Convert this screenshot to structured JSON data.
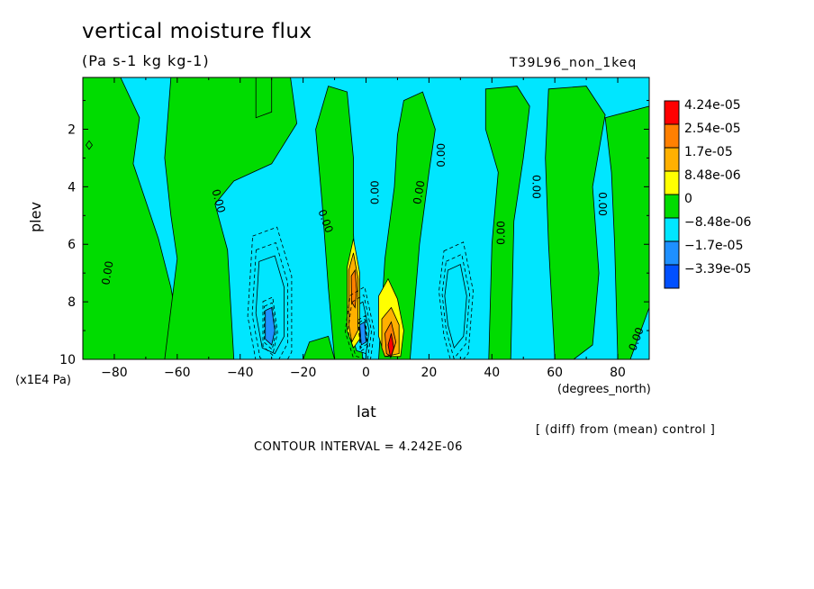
{
  "chart_data": {
    "type": "heatmap",
    "title": "vertical moisture flux",
    "units": "(Pa s-1 kg kg-1)",
    "run_label": "T39L96_non_1keq",
    "xlabel": "lat",
    "x_unit": "(degrees_north)",
    "ylabel": "plev",
    "y_unit": "(x1E4 Pa)",
    "xlim": [
      -90,
      90
    ],
    "ylim": [
      10,
      0.2
    ],
    "x_ticks": [
      -80,
      -60,
      -40,
      -20,
      0,
      20,
      40,
      60,
      80
    ],
    "x_tick_labels": [
      "−80",
      "−60",
      "−40",
      "−20",
      "0",
      "20",
      "40",
      "60",
      "80"
    ],
    "y_ticks": [
      2,
      4,
      6,
      8,
      10
    ],
    "y_tick_labels": [
      "2",
      "4",
      "6",
      "8",
      "10"
    ],
    "contour_label": "0.00",
    "colorbar": {
      "labels": [
        "4.24e-05",
        "2.54e-05",
        "1.7e-05",
        "8.48e-06",
        "0",
        "−8.48e-06",
        "−1.7e-05",
        "−3.39e-05"
      ],
      "colors": [
        "#ff0000",
        "#ff8000",
        "#ffb000",
        "#ffff00",
        "#00dc00",
        "#00e6ff",
        "#1e90ff",
        "#0050ff"
      ]
    },
    "note": "[ (diff) from (mean) control ]",
    "contour_interval": "CONTOUR INTERVAL = 4.242E-06",
    "regions": [
      {
        "level": 0,
        "points": [
          [
            -90,
            0.2
          ],
          [
            -78,
            0.2
          ],
          [
            -72,
            1.6
          ],
          [
            -74,
            3.2
          ],
          [
            -70,
            4.5
          ],
          [
            -66,
            5.8
          ],
          [
            -62,
            7.5
          ],
          [
            -58,
            10
          ],
          [
            -90,
            10
          ]
        ]
      },
      {
        "level": 0,
        "points": [
          [
            -62,
            0.2
          ],
          [
            -24,
            0.2
          ],
          [
            -22,
            1.8
          ],
          [
            -30,
            3.2
          ],
          [
            -42,
            3.8
          ],
          [
            -48,
            4.6
          ],
          [
            -44,
            6.2
          ],
          [
            -42,
            10
          ],
          [
            -64,
            10
          ],
          [
            -60,
            6.5
          ],
          [
            -62,
            5.0
          ],
          [
            -64,
            3.0
          ]
        ]
      },
      {
        "level": 0,
        "points": [
          [
            -35,
            0.2
          ],
          [
            -30,
            0.2
          ],
          [
            -30,
            1.4
          ],
          [
            -35,
            1.6
          ]
        ]
      },
      {
        "level": 0,
        "points": [
          [
            -12,
            0.5
          ],
          [
            -6,
            0.7
          ],
          [
            -4,
            3.0
          ],
          [
            -4,
            5.6
          ],
          [
            -3,
            8.0
          ],
          [
            -1,
            10
          ],
          [
            -10,
            10
          ],
          [
            -12,
            7.5
          ],
          [
            -14,
            4.5
          ],
          [
            -16,
            2.0
          ]
        ]
      },
      {
        "level": 0,
        "points": [
          [
            12,
            1.0
          ],
          [
            18,
            0.7
          ],
          [
            22,
            2.0
          ],
          [
            20,
            3.5
          ],
          [
            17,
            6.0
          ],
          [
            14,
            10
          ],
          [
            4,
            10
          ],
          [
            6,
            6.5
          ],
          [
            9,
            4.0
          ],
          [
            10,
            2.2
          ]
        ]
      },
      {
        "level": 0,
        "points": [
          [
            38,
            0.6
          ],
          [
            48,
            0.5
          ],
          [
            52,
            1.2
          ],
          [
            50,
            3.0
          ],
          [
            47,
            5.2
          ],
          [
            46,
            10
          ],
          [
            39,
            10
          ],
          [
            40,
            6.0
          ],
          [
            42,
            3.5
          ],
          [
            38,
            2.0
          ]
        ]
      },
      {
        "level": 0,
        "points": [
          [
            58,
            0.6
          ],
          [
            70,
            0.5
          ],
          [
            76,
            1.5
          ],
          [
            72,
            4.0
          ],
          [
            74,
            7.0
          ],
          [
            72,
            9.5
          ],
          [
            66,
            10
          ],
          [
            60,
            10
          ],
          [
            58,
            6.0
          ],
          [
            57,
            3.0
          ]
        ]
      },
      {
        "level": 0,
        "points": [
          [
            76,
            1.6
          ],
          [
            90,
            1.2
          ],
          [
            90,
            8.2
          ],
          [
            84,
            10
          ],
          [
            80,
            10
          ],
          [
            79,
            6.0
          ],
          [
            78,
            3.5
          ]
        ]
      },
      {
        "level": 0,
        "points": [
          [
            -88,
            2.4
          ],
          [
            -87,
            2.55
          ],
          [
            -88,
            2.7
          ],
          [
            -89,
            2.55
          ]
        ]
      },
      {
        "level": 0,
        "points": [
          [
            -18,
            9.4
          ],
          [
            -12,
            9.2
          ],
          [
            -10,
            10
          ],
          [
            -20,
            10
          ]
        ]
      },
      {
        "level": -1,
        "points": [
          [
            -34,
            6.6
          ],
          [
            -29,
            6.4
          ],
          [
            -26,
            7.5
          ],
          [
            -26,
            9.2
          ],
          [
            -29,
            9.8
          ],
          [
            -33,
            9.6
          ],
          [
            -35,
            8.4
          ]
        ]
      },
      {
        "level": -1,
        "points": [
          [
            26,
            6.9
          ],
          [
            30,
            6.7
          ],
          [
            32,
            7.8
          ],
          [
            31,
            9.2
          ],
          [
            28,
            9.6
          ],
          [
            26,
            8.8
          ],
          [
            25,
            7.8
          ]
        ]
      },
      {
        "level": -1,
        "points": [
          [
            -4,
            8.2
          ],
          [
            -1,
            8.0
          ],
          [
            1,
            9.0
          ],
          [
            0,
            9.8
          ],
          [
            -3,
            9.7
          ],
          [
            -5,
            9.0
          ]
        ]
      },
      {
        "level": -2,
        "points": [
          [
            -32,
            8.3
          ],
          [
            -30,
            8.2
          ],
          [
            -29,
            9.0
          ],
          [
            -30,
            9.5
          ],
          [
            -32,
            9.3
          ]
        ]
      },
      {
        "level": -2,
        "points": [
          [
            -2,
            8.8
          ],
          [
            -0.5,
            8.7
          ],
          [
            0,
            9.4
          ],
          [
            -1.5,
            9.5
          ]
        ]
      },
      {
        "level": 1,
        "points": [
          [
            -6,
            6.8
          ],
          [
            -4,
            5.8
          ],
          [
            -2,
            7.0
          ],
          [
            -2,
            9.3
          ],
          [
            -4,
            9.6
          ],
          [
            -6,
            9.0
          ]
        ]
      },
      {
        "level": 1,
        "points": [
          [
            4,
            7.8
          ],
          [
            7,
            7.2
          ],
          [
            10,
            7.9
          ],
          [
            12,
            9.0
          ],
          [
            11,
            9.9
          ],
          [
            6,
            9.9
          ],
          [
            4,
            9.2
          ]
        ]
      },
      {
        "level": 2,
        "points": [
          [
            -5.5,
            6.9
          ],
          [
            -4,
            6.3
          ],
          [
            -2.5,
            7.2
          ],
          [
            -2.6,
            9.0
          ],
          [
            -4.5,
            9.4
          ],
          [
            -5.5,
            8.8
          ]
        ]
      },
      {
        "level": 2,
        "points": [
          [
            5,
            8.6
          ],
          [
            8,
            8.2
          ],
          [
            10.5,
            8.8
          ],
          [
            10.5,
            9.8
          ],
          [
            6,
            9.9
          ],
          [
            5,
            9.6
          ]
        ]
      },
      {
        "level": 3,
        "points": [
          [
            -4.7,
            7.1
          ],
          [
            -3.5,
            6.9
          ],
          [
            -3.0,
            7.6
          ],
          [
            -3.5,
            8.2
          ],
          [
            -4.6,
            8.0
          ]
        ]
      },
      {
        "level": 3,
        "points": [
          [
            6,
            9.1
          ],
          [
            8,
            8.7
          ],
          [
            9.5,
            9.4
          ],
          [
            8,
            9.9
          ],
          [
            6.5,
            9.8
          ]
        ]
      },
      {
        "level": 4,
        "points": [
          [
            7,
            9.5
          ],
          [
            8,
            9.1
          ],
          [
            8.8,
            9.6
          ],
          [
            7.8,
            9.95
          ]
        ]
      }
    ],
    "contour_labels": [
      {
        "lat": -82,
        "plev": 7.0,
        "angle": -80
      },
      {
        "lat": -47,
        "plev": 4.5,
        "angle": 75
      },
      {
        "lat": -13,
        "plev": 5.2,
        "angle": 70
      },
      {
        "lat": 3,
        "plev": 4.2,
        "angle": -90
      },
      {
        "lat": 17,
        "plev": 4.2,
        "angle": -80
      },
      {
        "lat": 24,
        "plev": 2.9,
        "angle": -90
      },
      {
        "lat": 43,
        "plev": 5.6,
        "angle": -90
      },
      {
        "lat": 54,
        "plev": 4.0,
        "angle": 90
      },
      {
        "lat": 75,
        "plev": 4.6,
        "angle": 90
      },
      {
        "lat": 86,
        "plev": 9.3,
        "angle": -70
      }
    ]
  }
}
